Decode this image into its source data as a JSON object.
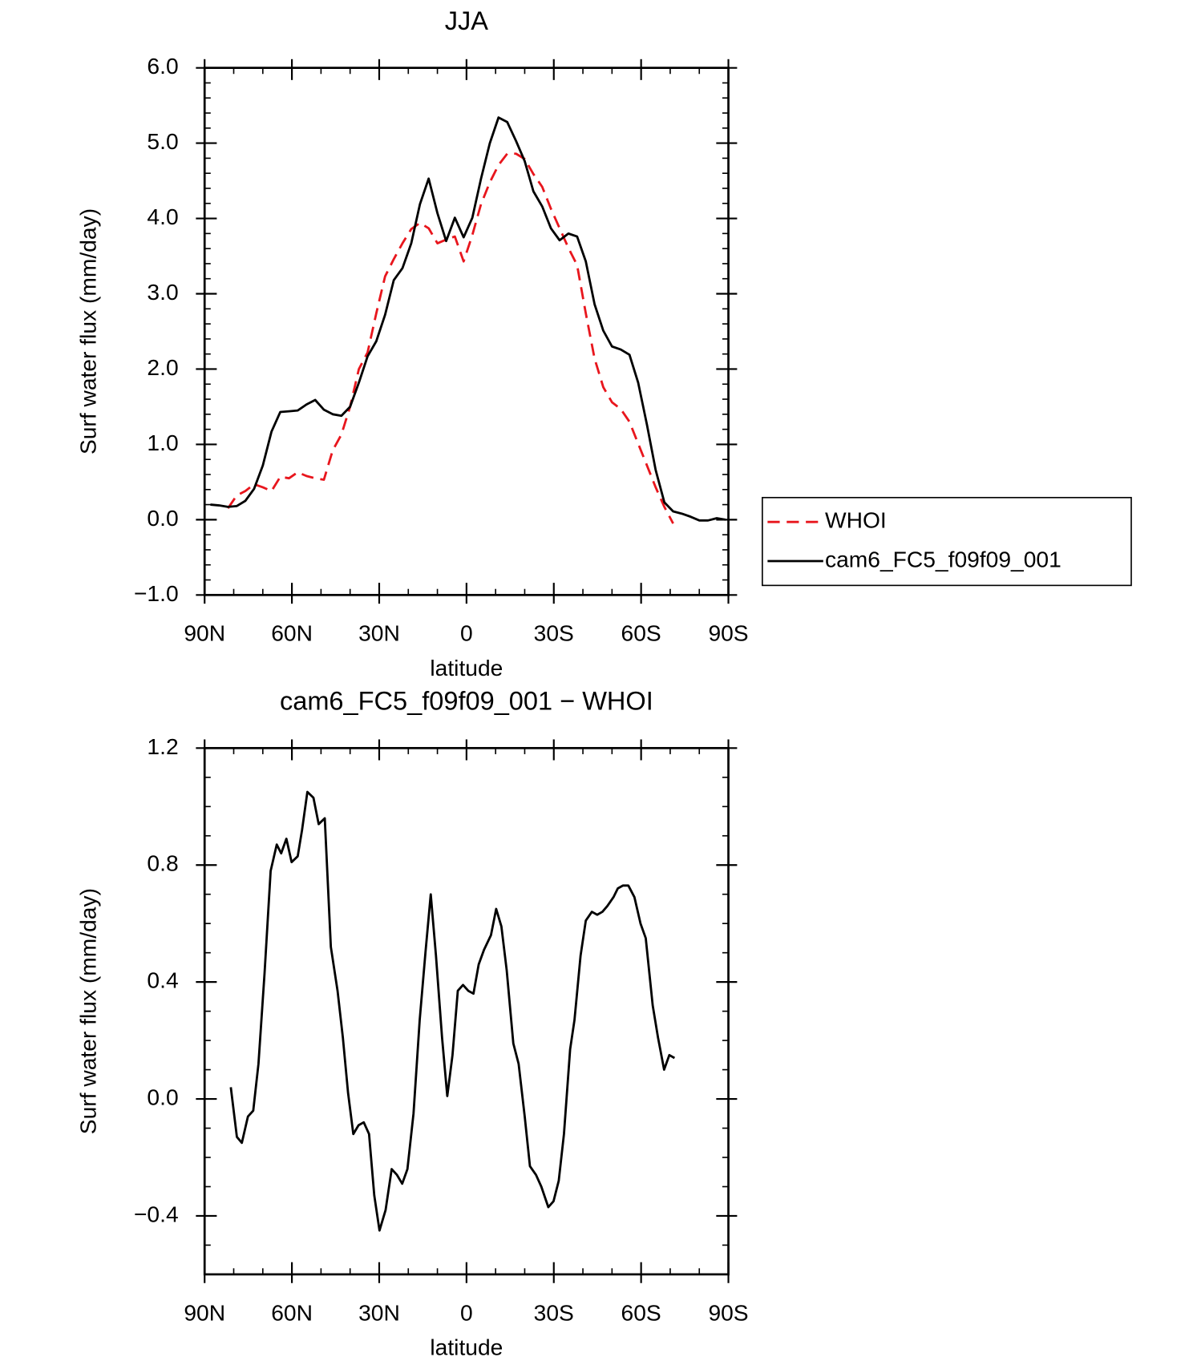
{
  "chart_data": [
    {
      "type": "line",
      "title": "JJA",
      "x_label": "latitude",
      "y_label": "Surf water flux (mm/day)",
      "x": [
        88,
        85,
        82,
        79,
        76,
        73,
        70,
        67,
        64,
        61,
        58,
        55,
        52,
        49,
        46,
        43,
        40,
        37,
        34,
        31,
        28,
        25,
        22,
        19,
        16,
        13,
        10,
        7,
        4,
        1,
        -2,
        -5,
        -8,
        -11,
        -14,
        -17,
        -20,
        -23,
        -26,
        -29,
        -32,
        -35,
        -38,
        -41,
        -44,
        -47,
        -50,
        -53,
        -56,
        -59,
        -62,
        -65,
        -68,
        -71,
        -74,
        -77,
        -80,
        -83,
        -86,
        -89
      ],
      "series": [
        {
          "name": "WHOI",
          "color": "#e8161d",
          "linestyle": "dashed",
          "values": [
            null,
            null,
            0.15,
            0.32,
            0.38,
            0.47,
            0.43,
            0.38,
            0.57,
            0.55,
            0.63,
            0.58,
            0.55,
            0.53,
            0.92,
            1.13,
            1.5,
            2.0,
            2.22,
            2.74,
            3.23,
            3.46,
            3.67,
            3.86,
            3.94,
            3.87,
            3.67,
            3.72,
            3.76,
            3.43,
            3.78,
            4.19,
            4.48,
            4.71,
            4.86,
            4.86,
            4.79,
            4.59,
            4.42,
            4.13,
            3.87,
            3.61,
            3.38,
            2.74,
            2.14,
            1.76,
            1.56,
            1.47,
            1.3,
            1.01,
            0.72,
            0.43,
            0.17,
            -0.05,
            null,
            null,
            null,
            null,
            null,
            null
          ]
        },
        {
          "name": "cam6_FC5_f09f09_001",
          "color": "#000000",
          "linestyle": "solid",
          "values": [
            0.2,
            0.19,
            0.17,
            0.18,
            0.25,
            0.41,
            0.72,
            1.17,
            1.43,
            1.44,
            1.45,
            1.53,
            1.59,
            1.46,
            1.4,
            1.38,
            1.5,
            1.82,
            2.17,
            2.37,
            2.72,
            3.18,
            3.34,
            3.67,
            4.19,
            4.53,
            4.07,
            3.7,
            4.01,
            3.75,
            4.01,
            4.53,
            5.0,
            5.34,
            5.28,
            5.03,
            4.76,
            4.36,
            4.16,
            3.87,
            3.71,
            3.8,
            3.76,
            3.43,
            2.86,
            2.51,
            2.3,
            2.26,
            2.19,
            1.82,
            1.26,
            0.66,
            0.23,
            0.11,
            0.08,
            0.04,
            -0.01,
            -0.01,
            0.02,
            0.0
          ]
        }
      ],
      "xlim": [
        90,
        -90
      ],
      "xticks": [
        {
          "value": 90,
          "label": "90N"
        },
        {
          "value": 60,
          "label": "60N"
        },
        {
          "value": 30,
          "label": "30N"
        },
        0,
        {
          "value": -30,
          "label": "30S"
        },
        {
          "value": -60,
          "label": "60S"
        },
        {
          "value": -90,
          "label": "90S"
        }
      ],
      "xminorticks": [
        80,
        70,
        50,
        40,
        20,
        10,
        -10,
        -20,
        -40,
        -50,
        -70,
        -80
      ],
      "ylim": [
        -1,
        6
      ],
      "yticks": [
        {
          "value": -1,
          "label": "−1.0"
        },
        {
          "value": 0,
          "label": "0.0"
        },
        {
          "value": 1,
          "label": "1.0"
        },
        {
          "value": 2,
          "label": "2.0"
        },
        {
          "value": 3,
          "label": "3.0"
        },
        {
          "value": 4,
          "label": "4.0"
        },
        {
          "value": 5,
          "label": "5.0"
        },
        {
          "value": 6,
          "label": "6.0"
        }
      ],
      "yminorticks": [
        -0.8,
        -0.6,
        -0.4,
        -0.2,
        0.2,
        0.4,
        0.6,
        0.8,
        1.2,
        1.4,
        1.6,
        1.8,
        2.2,
        2.4,
        2.6,
        2.8,
        3.2,
        3.4,
        3.6,
        3.8,
        4.2,
        4.4,
        4.6,
        4.8,
        5.2,
        5.4,
        5.6,
        5.8
      ],
      "legend": "right"
    },
    {
      "type": "line",
      "title": "cam6_FC5_f09f09_001 − WHOI",
      "x_label": "latitude",
      "y_label": "Surf water flux (mm/day)",
      "x": [
        81.0,
        78.9,
        77.2,
        75.1,
        73.3,
        71.5,
        69.4,
        67.3,
        65.2,
        63.7,
        61.9,
        60.1,
        58.0,
        56.5,
        54.7,
        52.6,
        50.8,
        48.7,
        46.6,
        44.3,
        42.5,
        40.7,
        38.9,
        37.1,
        35.3,
        33.5,
        31.7,
        29.9,
        27.8,
        25.7,
        23.9,
        22.1,
        20.3,
        18.2,
        16.1,
        14.1,
        12.3,
        10.5,
        8.4,
        6.6,
        4.8,
        3.0,
        1.2,
        -0.6,
        -2.4,
        -4.2,
        -6.0,
        -8.4,
        -10.2,
        -12.0,
        -13.8,
        -16.1,
        -17.9,
        -20.0,
        -21.8,
        -23.9,
        -25.7,
        -28.1,
        -29.9,
        -31.7,
        -33.5,
        -35.6,
        -37.1,
        -39.2,
        -41.0,
        -43.1,
        -44.9,
        -46.7,
        -48.4,
        -50.5,
        -52.0,
        -53.8,
        -55.6,
        -57.7,
        -59.8,
        -61.6,
        -64.0,
        -65.8,
        -67.9,
        -69.7,
        -71.5
      ],
      "values": [
        0.04,
        -0.13,
        -0.15,
        -0.06,
        -0.04,
        0.12,
        0.43,
        0.78,
        0.87,
        0.84,
        0.89,
        0.81,
        0.83,
        0.92,
        1.05,
        1.03,
        0.94,
        0.96,
        0.52,
        0.37,
        0.21,
        0.02,
        -0.12,
        -0.09,
        -0.08,
        -0.12,
        -0.33,
        -0.45,
        -0.38,
        -0.24,
        -0.26,
        -0.29,
        -0.24,
        -0.05,
        0.27,
        0.5,
        0.7,
        0.49,
        0.21,
        0.01,
        0.15,
        0.37,
        0.39,
        0.37,
        0.36,
        0.46,
        0.51,
        0.56,
        0.65,
        0.59,
        0.44,
        0.19,
        0.12,
        -0.06,
        -0.23,
        -0.26,
        -0.3,
        -0.37,
        -0.35,
        -0.28,
        -0.12,
        0.17,
        0.27,
        0.49,
        0.61,
        0.64,
        0.63,
        0.64,
        0.66,
        0.69,
        0.72,
        0.73,
        0.73,
        0.69,
        0.6,
        0.55,
        0.32,
        0.21,
        0.1,
        0.15,
        0.14
      ],
      "color": "#000000",
      "xlim": [
        90,
        -90
      ],
      "xticks": [
        {
          "value": 90,
          "label": "90N"
        },
        {
          "value": 60,
          "label": "60N"
        },
        {
          "value": 30,
          "label": "30N"
        },
        0,
        {
          "value": -30,
          "label": "30S"
        },
        {
          "value": -60,
          "label": "60S"
        },
        {
          "value": -90,
          "label": "90S"
        }
      ],
      "xminorticks": [
        80,
        70,
        50,
        40,
        20,
        10,
        -10,
        -20,
        -40,
        -50,
        -70,
        -80
      ],
      "ylim": [
        -0.6,
        1.2
      ],
      "yticks": [
        {
          "value": -0.4,
          "label": "−0.4"
        },
        {
          "value": 0,
          "label": "0.0"
        },
        {
          "value": 0.4,
          "label": "0.4"
        },
        {
          "value": 0.8,
          "label": "0.8"
        },
        {
          "value": 1.2,
          "label": "1.2"
        }
      ],
      "yminorticks": [
        -0.5,
        -0.3,
        -0.2,
        -0.1,
        0.1,
        0.2,
        0.3,
        0.5,
        0.6,
        0.7,
        0.9,
        1.0,
        1.1
      ]
    }
  ]
}
